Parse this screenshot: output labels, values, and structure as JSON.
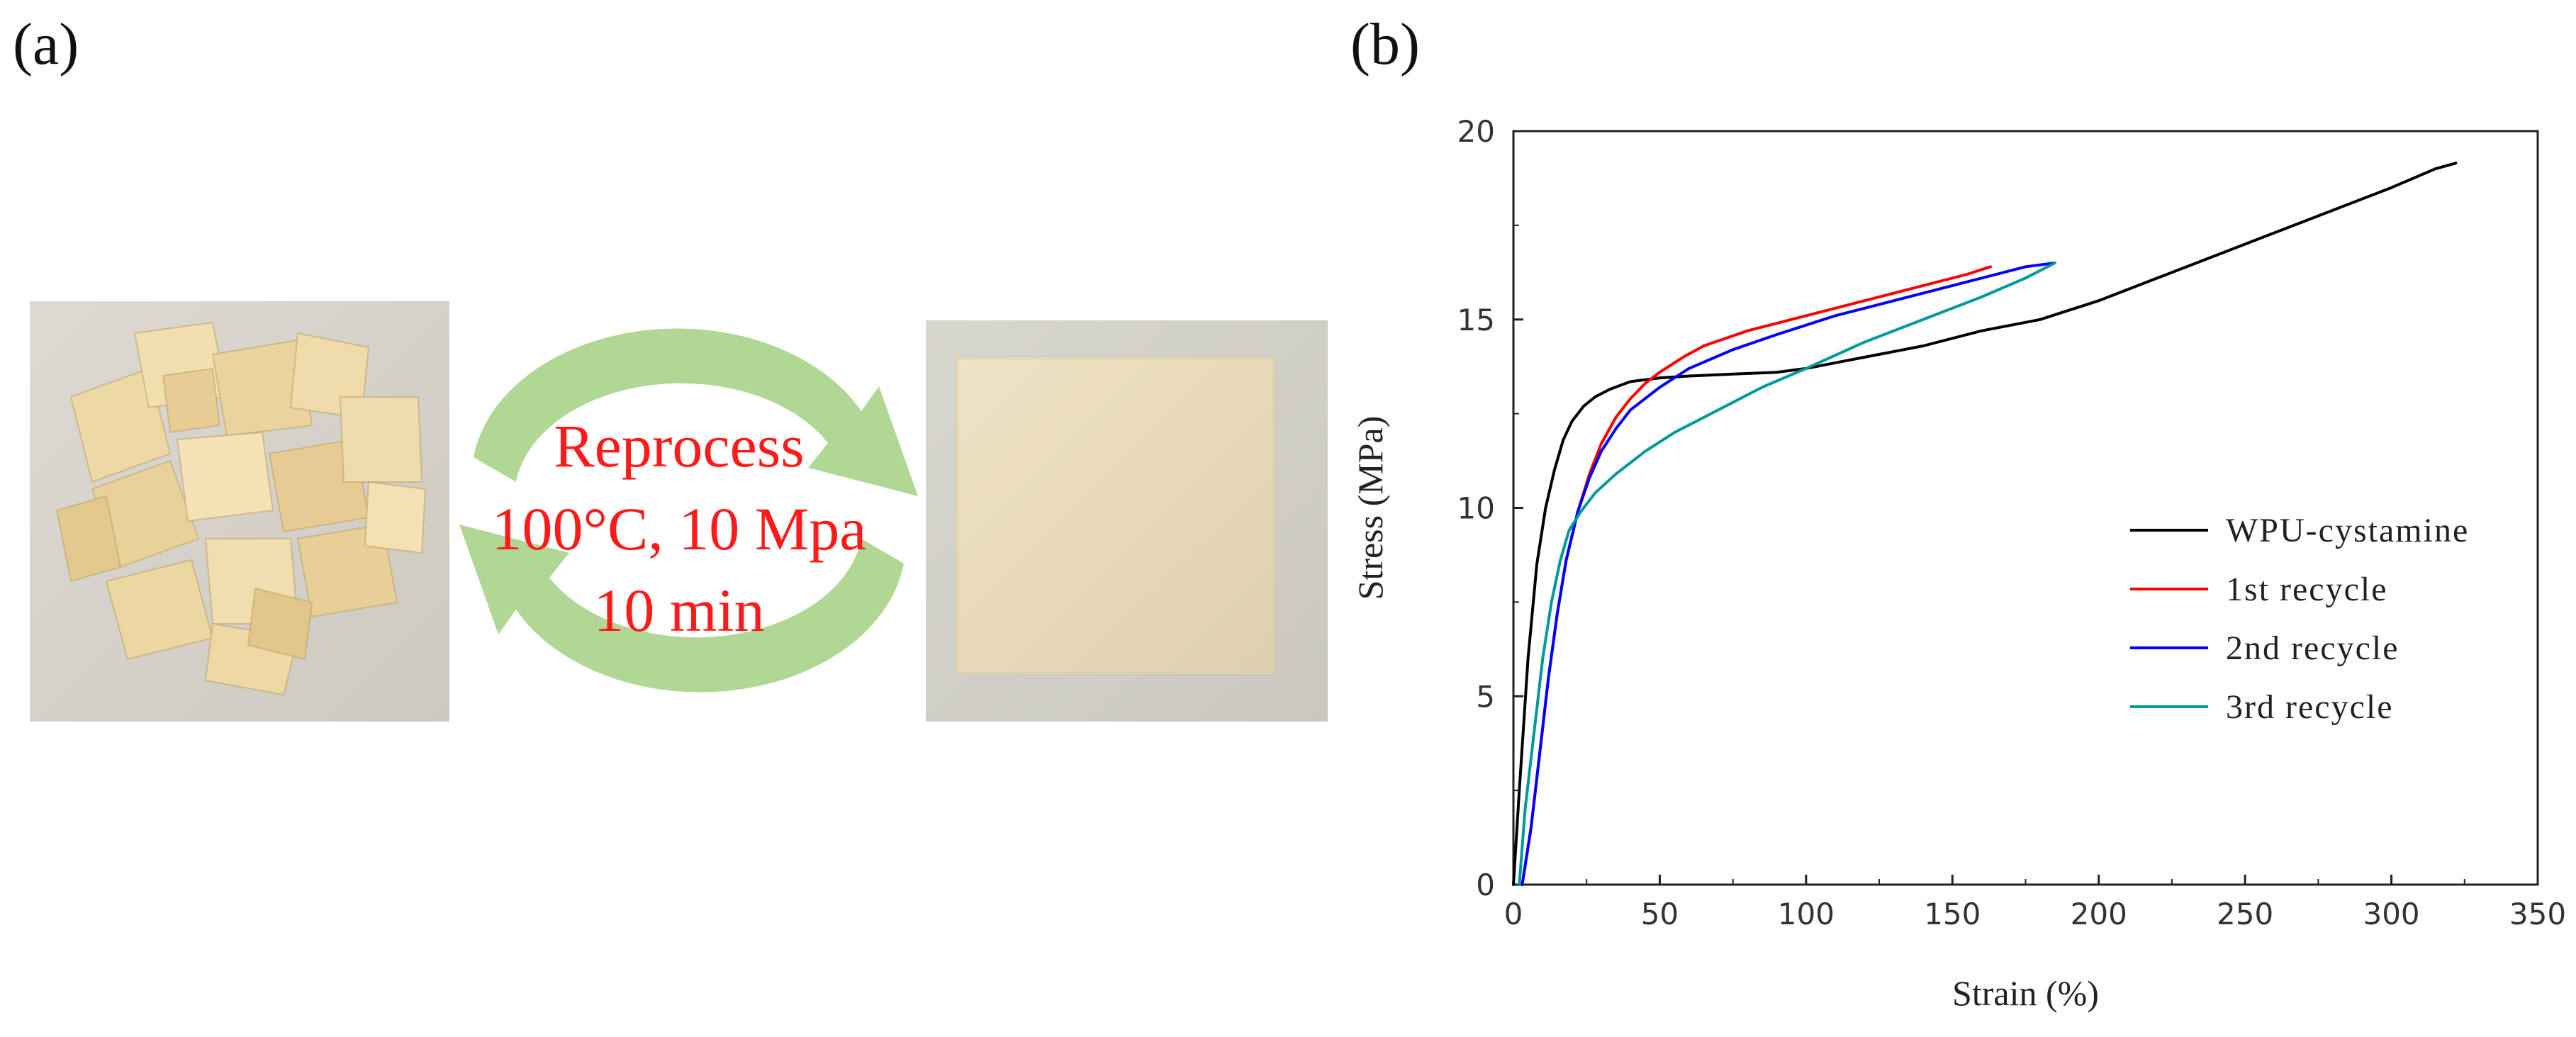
{
  "panel_a": {
    "label": "(a)",
    "process_lines": [
      "Reprocess",
      "100°C, 10 Mpa",
      "10 min"
    ],
    "arrow_color": "#a8d38a",
    "text_color": "#ff1a1a"
  },
  "panel_b": {
    "label": "(b)"
  },
  "chart_data": {
    "type": "line",
    "title": "",
    "xlabel": "Strain (%)",
    "ylabel": "Stress (MPa)",
    "xlim": [
      0,
      350
    ],
    "ylim": [
      0,
      20
    ],
    "xticks": [
      0,
      50,
      100,
      150,
      200,
      250,
      300,
      350
    ],
    "yticks": [
      0,
      5,
      10,
      15,
      20
    ],
    "legend_position": "right",
    "series": [
      {
        "name": "WPU-cystamine",
        "color": "#000000",
        "points": [
          [
            0,
            0
          ],
          [
            2,
            2.5
          ],
          [
            5,
            6
          ],
          [
            8,
            8.5
          ],
          [
            11,
            10
          ],
          [
            14,
            11
          ],
          [
            17,
            11.8
          ],
          [
            20,
            12.3
          ],
          [
            24,
            12.7
          ],
          [
            28,
            12.95
          ],
          [
            33,
            13.15
          ],
          [
            40,
            13.35
          ],
          [
            50,
            13.45
          ],
          [
            60,
            13.5
          ],
          [
            75,
            13.55
          ],
          [
            90,
            13.6
          ],
          [
            100,
            13.7
          ],
          [
            120,
            14.0
          ],
          [
            140,
            14.3
          ],
          [
            160,
            14.7
          ],
          [
            180,
            15.0
          ],
          [
            200,
            15.5
          ],
          [
            220,
            16.1
          ],
          [
            240,
            16.7
          ],
          [
            260,
            17.3
          ],
          [
            280,
            17.9
          ],
          [
            300,
            18.5
          ],
          [
            315,
            19.0
          ],
          [
            322,
            19.15
          ]
        ]
      },
      {
        "name": "1st recycle",
        "color": "#ff0000",
        "points": [
          [
            3,
            0
          ],
          [
            6,
            1.5
          ],
          [
            9,
            3.5
          ],
          [
            12,
            5.5
          ],
          [
            15,
            7.2
          ],
          [
            18,
            8.6
          ],
          [
            22,
            9.9
          ],
          [
            26,
            10.9
          ],
          [
            30,
            11.7
          ],
          [
            35,
            12.4
          ],
          [
            40,
            12.9
          ],
          [
            45,
            13.3
          ],
          [
            50,
            13.6
          ],
          [
            58,
            14.0
          ],
          [
            65,
            14.3
          ],
          [
            80,
            14.7
          ],
          [
            100,
            15.1
          ],
          [
            120,
            15.5
          ],
          [
            140,
            15.9
          ],
          [
            155,
            16.2
          ],
          [
            163,
            16.4
          ]
        ]
      },
      {
        "name": "2nd recycle",
        "color": "#0000ff",
        "points": [
          [
            3,
            0
          ],
          [
            6,
            1.5
          ],
          [
            9,
            3.5
          ],
          [
            12,
            5.5
          ],
          [
            15,
            7.2
          ],
          [
            18,
            8.6
          ],
          [
            22,
            9.9
          ],
          [
            26,
            10.8
          ],
          [
            30,
            11.5
          ],
          [
            35,
            12.1
          ],
          [
            40,
            12.6
          ],
          [
            50,
            13.2
          ],
          [
            60,
            13.7
          ],
          [
            75,
            14.2
          ],
          [
            90,
            14.6
          ],
          [
            110,
            15.1
          ],
          [
            130,
            15.5
          ],
          [
            150,
            15.9
          ],
          [
            165,
            16.2
          ],
          [
            175,
            16.4
          ],
          [
            185,
            16.5
          ]
        ]
      },
      {
        "name": "3rd recycle",
        "color": "#009999",
        "points": [
          [
            2,
            0
          ],
          [
            4,
            2
          ],
          [
            7,
            4
          ],
          [
            10,
            6
          ],
          [
            13,
            7.5
          ],
          [
            16,
            8.6
          ],
          [
            19,
            9.4
          ],
          [
            23,
            9.9
          ],
          [
            28,
            10.4
          ],
          [
            35,
            10.9
          ],
          [
            45,
            11.5
          ],
          [
            55,
            12.0
          ],
          [
            70,
            12.6
          ],
          [
            85,
            13.2
          ],
          [
            100,
            13.7
          ],
          [
            120,
            14.4
          ],
          [
            140,
            15.0
          ],
          [
            160,
            15.6
          ],
          [
            175,
            16.1
          ],
          [
            185,
            16.5
          ]
        ]
      }
    ]
  }
}
